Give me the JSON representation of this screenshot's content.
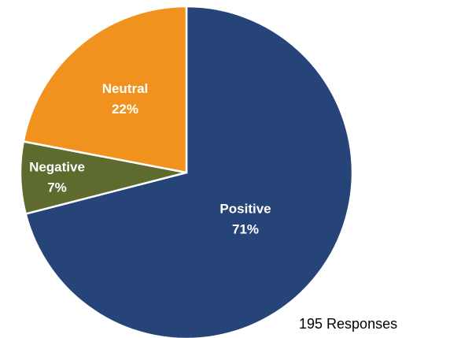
{
  "chart_data": {
    "type": "pie",
    "categories": [
      "Positive",
      "Negative",
      "Neutral"
    ],
    "values": [
      71,
      7,
      22
    ],
    "value_labels": [
      "71%",
      "7%",
      "22%"
    ],
    "colors": [
      "#264478",
      "#5e6b2f",
      "#f1921f"
    ],
    "annotation": "195 Responses"
  }
}
